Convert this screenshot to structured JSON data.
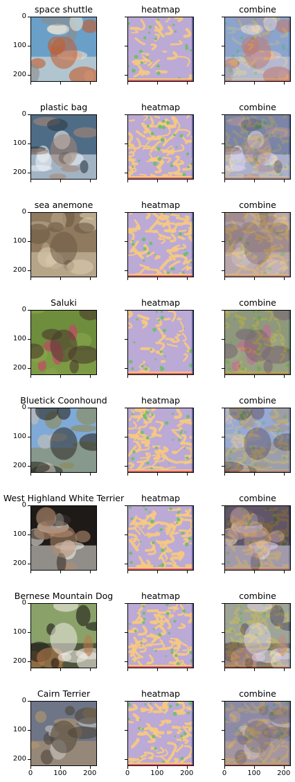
{
  "rows": [
    {
      "label": "space shuttle",
      "theme": "shuttle"
    },
    {
      "label": "plastic bag",
      "theme": "water"
    },
    {
      "label": "sea anemone",
      "theme": "fungus"
    },
    {
      "label": "Saluki",
      "theme": "grass"
    },
    {
      "label": "Bluetick Coonhound",
      "theme": "field"
    },
    {
      "label": "West Highland White Terrier",
      "theme": "westie"
    },
    {
      "label": "Bernese Mountain Dog",
      "theme": "bernese"
    },
    {
      "label": "Cairn Terrier",
      "theme": "cairn"
    }
  ],
  "column_titles": {
    "heatmap": "heatmap",
    "combine": "combine"
  },
  "y_ticks": [
    "0",
    "100",
    "200"
  ],
  "x_ticks": [
    "0",
    "100",
    "200"
  ],
  "axis_range": [
    0,
    224
  ],
  "heatmap_colors": {
    "base": "#bba9d6",
    "warm": "#f7c97f",
    "green": "#6abf69",
    "edge": "#c0185a",
    "edge2": "#2b3f8c"
  }
}
